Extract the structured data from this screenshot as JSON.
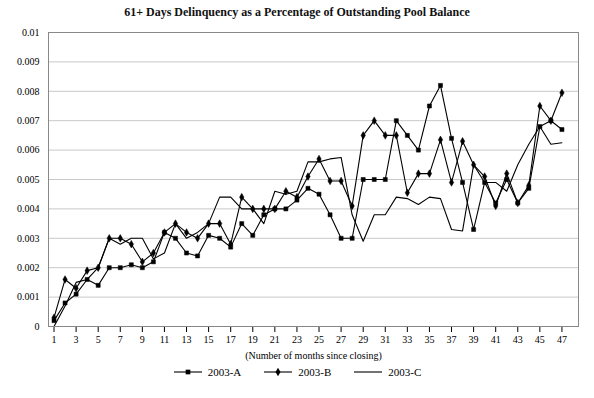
{
  "chart_data": {
    "type": "line",
    "title": "61+ Days Delinquency as a Percentage of Outstanding Pool Balance",
    "xlabel": "(Number of months since closing)",
    "x": [
      1,
      2,
      3,
      4,
      5,
      6,
      7,
      8,
      9,
      10,
      11,
      12,
      13,
      14,
      15,
      16,
      17,
      18,
      19,
      20,
      21,
      22,
      23,
      24,
      25,
      26,
      27,
      28,
      29,
      30,
      31,
      32,
      33,
      34,
      35,
      36,
      37,
      38,
      39,
      40,
      41,
      42,
      43,
      44,
      45,
      46,
      47
    ],
    "series": [
      {
        "name": "2003-A",
        "color": "#000000",
        "marker": "square",
        "values": [
          0.0002,
          0.0008,
          0.0011,
          0.0016,
          0.0014,
          0.002,
          0.002,
          0.0021,
          0.002,
          0.0022,
          0.0032,
          0.003,
          0.0025,
          0.0024,
          0.0031,
          0.003,
          0.0027,
          0.0035,
          0.0031,
          0.0038,
          0.004,
          0.004,
          0.0043,
          0.0047,
          0.0045,
          0.0038,
          0.003,
          0.003,
          0.005,
          0.005,
          0.005,
          0.007,
          0.0065,
          0.006,
          0.0075,
          0.0082,
          0.0064,
          0.0049,
          0.0033,
          0.0049,
          0.0042,
          0.005,
          0.0042,
          0.0047,
          0.0068,
          0.007,
          0.0067
        ]
      },
      {
        "name": "2003-B",
        "color": "#000000",
        "marker": "diamond",
        "values": [
          0.0003,
          0.0016,
          0.0013,
          0.0019,
          0.002,
          0.003,
          0.003,
          0.0028,
          0.0022,
          0.0025,
          0.0032,
          0.0035,
          0.0032,
          0.003,
          0.0035,
          0.0035,
          0.0028,
          0.0044,
          0.004,
          0.004,
          0.004,
          0.0046,
          0.0044,
          0.0051,
          0.0057,
          0.00495,
          0.00495,
          0.0041,
          0.0065,
          0.007,
          0.0065,
          0.0065,
          0.00455,
          0.0052,
          0.0052,
          0.00635,
          0.0049,
          0.0063,
          0.0055,
          0.0051,
          0.0041,
          0.0052,
          0.0042,
          0.0048,
          0.0075,
          0.007,
          0.00795
        ]
      },
      {
        "name": "2003-C",
        "color": "#000000",
        "marker": "none",
        "values": [
          0.0,
          0.0007,
          0.0015,
          0.0016,
          0.002,
          0.003,
          0.0028,
          0.003,
          0.003,
          0.0023,
          0.0025,
          0.0035,
          0.003,
          0.0032,
          0.0035,
          0.0044,
          0.0044,
          0.004,
          0.004,
          0.0035,
          0.0046,
          0.0045,
          0.0046,
          0.0056,
          0.0056,
          0.0057,
          0.00575,
          0.0038,
          0.0029,
          0.0038,
          0.0038,
          0.0044,
          0.00435,
          0.00415,
          0.0044,
          0.00435,
          0.0033,
          0.00325,
          0.0055,
          0.0049,
          0.0049,
          0.0046,
          0.0055,
          0.0062,
          0.0068,
          0.0062,
          0.00625
        ]
      }
    ],
    "xlim": [
      0.5,
      48.5
    ],
    "xticks": [
      1,
      3,
      5,
      7,
      9,
      11,
      13,
      15,
      17,
      19,
      21,
      23,
      25,
      27,
      29,
      31,
      33,
      35,
      37,
      39,
      41,
      43,
      45,
      47
    ],
    "ylim": [
      0,
      0.01
    ],
    "yticks": [
      0,
      0.001,
      0.002,
      0.003,
      0.004,
      0.005,
      0.006,
      0.007,
      0.008,
      0.009,
      0.01
    ],
    "grid": "y",
    "legend": "bottom"
  }
}
